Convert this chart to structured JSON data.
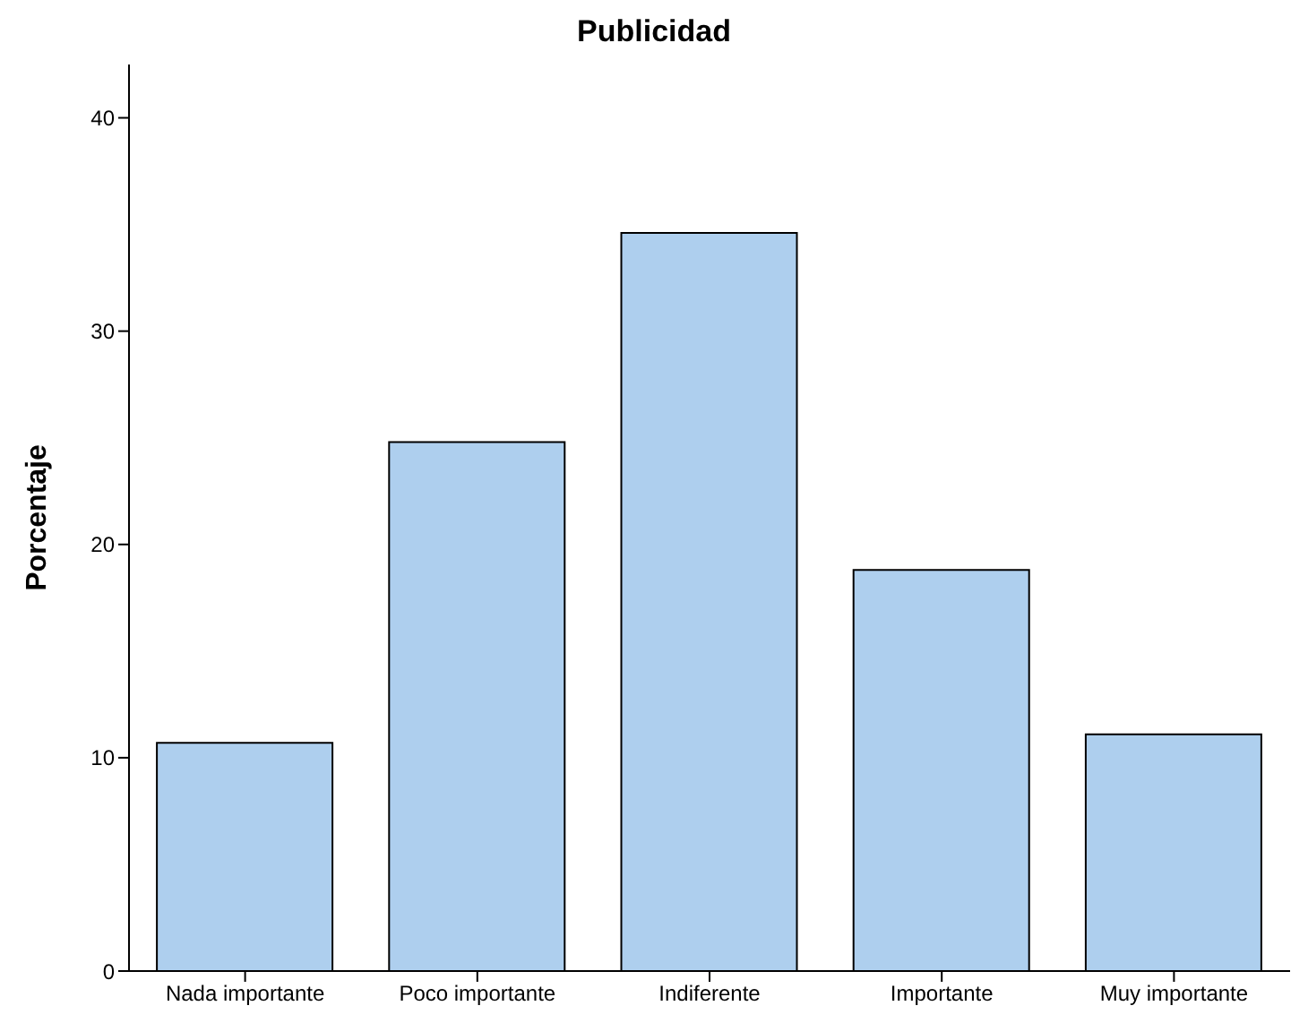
{
  "chart_data": {
    "type": "bar",
    "title": "Publicidad",
    "ylabel": "Porcentaje",
    "categories": [
      "Nada importante",
      "Poco importante",
      "Indiferente",
      "Importante",
      "Muy importante"
    ],
    "values": [
      10.7,
      24.8,
      34.6,
      18.8,
      11.1
    ],
    "color": "#aecfee",
    "ylim": [
      0,
      42.5
    ],
    "yticks": [
      0,
      10,
      20,
      30,
      40
    ],
    "grid": false
  }
}
